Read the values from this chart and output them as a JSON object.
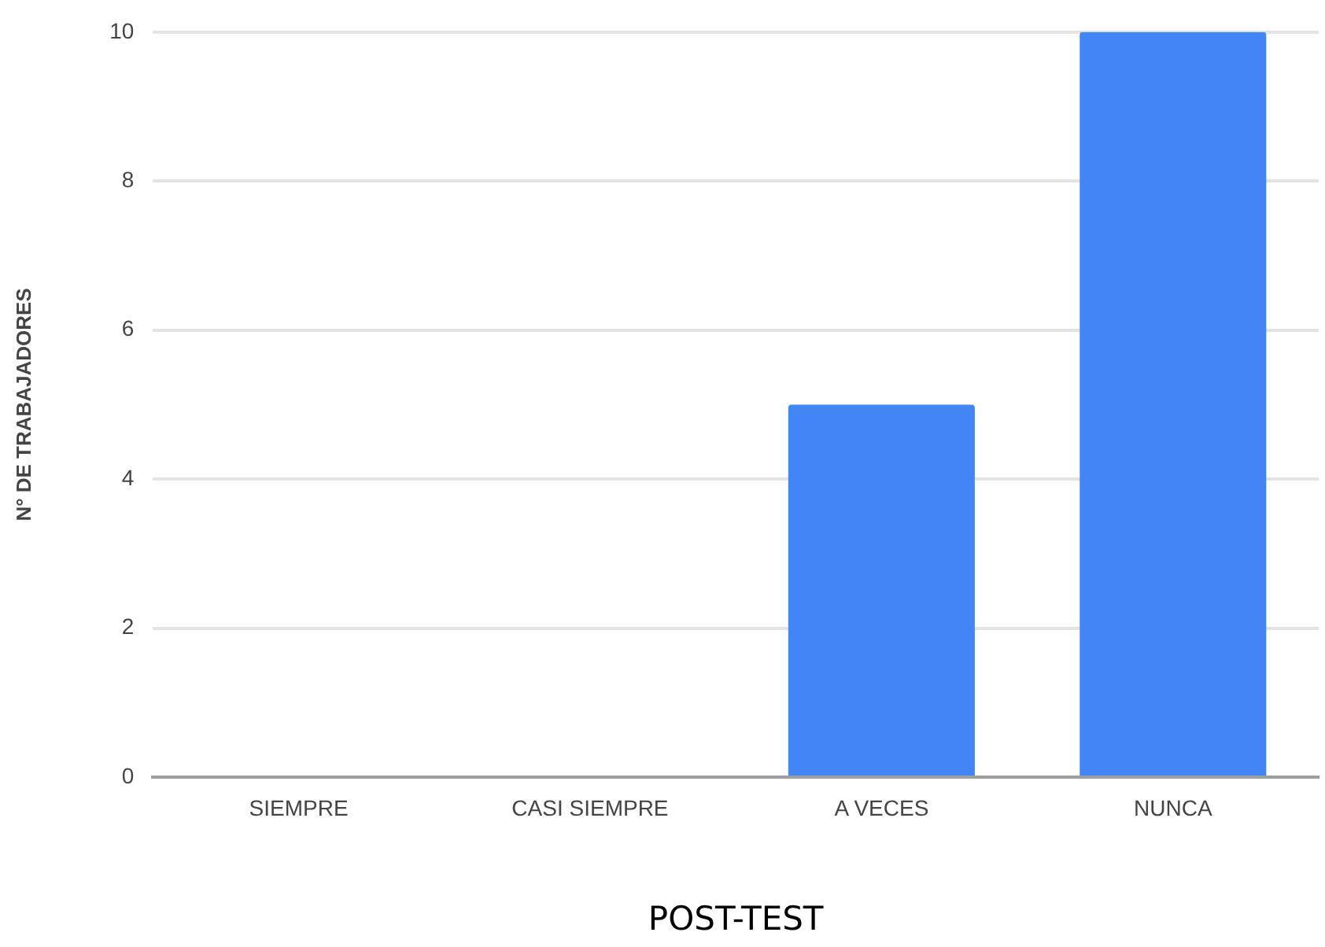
{
  "chart_data": {
    "type": "bar",
    "xlabel": "POST-TEST",
    "ylabel": "N° DE TRABAJADORES",
    "categories": [
      "SIEMPRE",
      "CASI SIEMPRE",
      "A VECES",
      "NUNCA"
    ],
    "values": [
      0,
      0,
      5,
      10
    ],
    "color": "#4285f4",
    "ylim": [
      0,
      10
    ],
    "yticks": [
      0,
      2,
      4,
      6,
      8,
      10
    ],
    "grid": "y",
    "legend": false
  }
}
